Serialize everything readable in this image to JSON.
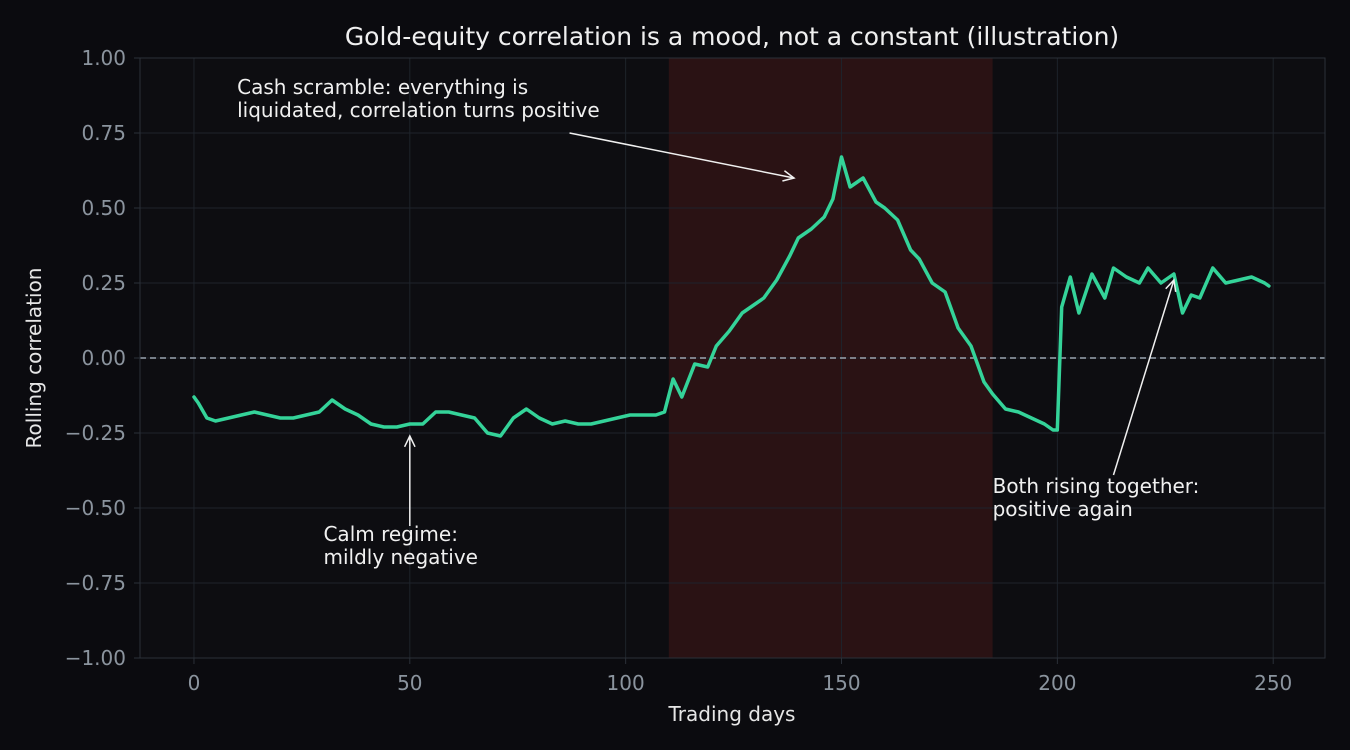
{
  "chart_data": {
    "type": "line",
    "title": "Gold-equity correlation is a mood, not a constant (illustration)",
    "xlabel": "Trading days",
    "ylabel": "Rolling correlation",
    "xlim": [
      -12.5,
      262
    ],
    "ylim": [
      -1.0,
      1.0
    ],
    "xticks": [
      "0",
      "50",
      "100",
      "150",
      "200",
      "250"
    ],
    "yticks": [
      "1.00",
      "0.75",
      "0.50",
      "0.25",
      "0.00",
      "−0.25",
      "−0.50",
      "−0.75",
      "−1.00"
    ],
    "grid": true,
    "legend": "none",
    "reference_line": {
      "y": 0,
      "style": "dashed"
    },
    "shaded_region": {
      "x0": 110,
      "x1": 185
    },
    "series": [
      {
        "x": [
          0,
          1,
          3,
          5,
          8,
          11,
          14,
          17,
          20,
          23,
          26,
          29,
          32,
          35,
          38,
          41,
          44,
          47,
          50,
          53,
          56,
          59,
          62,
          65,
          68,
          71,
          74,
          77,
          80,
          83,
          86,
          89,
          92,
          95,
          98,
          101,
          104,
          107,
          109,
          111,
          113,
          116,
          119,
          121,
          124,
          127,
          130,
          132,
          135,
          138,
          140,
          143,
          146,
          148,
          150,
          152,
          155,
          158,
          160,
          163,
          166,
          168,
          171,
          174,
          177,
          180,
          183,
          185,
          188,
          191,
          194,
          197,
          199,
          200,
          201,
          203,
          205,
          208,
          211,
          213,
          216,
          219,
          221,
          224,
          227,
          229,
          231,
          233,
          236,
          239,
          242,
          245,
          248,
          249
        ],
        "y": [
          -0.13,
          -0.15,
          -0.2,
          -0.21,
          -0.2,
          -0.19,
          -0.18,
          -0.19,
          -0.2,
          -0.2,
          -0.19,
          -0.18,
          -0.14,
          -0.17,
          -0.19,
          -0.22,
          -0.23,
          -0.23,
          -0.22,
          -0.22,
          -0.18,
          -0.18,
          -0.19,
          -0.2,
          -0.25,
          -0.26,
          -0.2,
          -0.17,
          -0.2,
          -0.22,
          -0.21,
          -0.22,
          -0.22,
          -0.21,
          -0.2,
          -0.19,
          -0.19,
          -0.19,
          -0.18,
          -0.07,
          -0.13,
          -0.02,
          -0.03,
          0.04,
          0.09,
          0.15,
          0.18,
          0.2,
          0.26,
          0.34,
          0.4,
          0.43,
          0.47,
          0.53,
          0.67,
          0.57,
          0.6,
          0.52,
          0.5,
          0.46,
          0.36,
          0.33,
          0.25,
          0.22,
          0.1,
          0.04,
          -0.08,
          -0.12,
          -0.17,
          -0.18,
          -0.2,
          -0.22,
          -0.24,
          -0.24,
          0.17,
          0.27,
          0.15,
          0.28,
          0.2,
          0.3,
          0.27,
          0.25,
          0.3,
          0.25,
          0.28,
          0.15,
          0.21,
          0.2,
          0.3,
          0.25,
          0.26,
          0.27,
          0.25,
          0.24
        ]
      }
    ],
    "annotations": [
      {
        "lines": [
          "Cash scramble: everything is",
          "liquidated, correlation turns positive"
        ],
        "text_x": 10,
        "text_y": 0.88,
        "arrow_from": [
          87,
          0.75
        ],
        "arrow_to": [
          139,
          0.6
        ]
      },
      {
        "lines": [
          "Calm regime:",
          "mildly negative"
        ],
        "text_x": 30,
        "text_y": -0.61,
        "arrow_from": [
          50,
          -0.56
        ],
        "arrow_to": [
          50,
          -0.26
        ]
      },
      {
        "lines": [
          "Both rising together:",
          "positive again"
        ],
        "text_x": 185,
        "text_y": -0.45,
        "arrow_from": [
          213,
          -0.39
        ],
        "arrow_to": [
          227,
          0.26
        ]
      }
    ],
    "colors": {
      "background": "#0b0b0f",
      "plot_background": "#0d0d11",
      "line": "#34d399",
      "shade": "#2a1214",
      "grid": "#1e232b",
      "spine": "#2b3038",
      "zero_line": "#9aa4b0"
    }
  }
}
